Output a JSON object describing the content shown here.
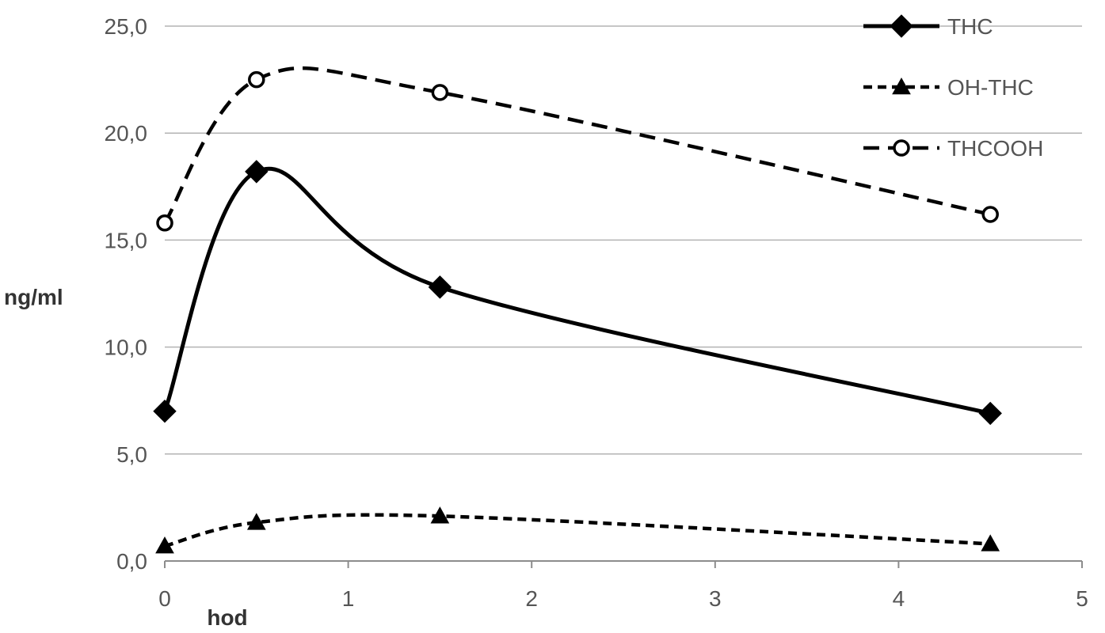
{
  "chart_data": {
    "type": "line",
    "title": "",
    "xlabel": "hod",
    "ylabel": "ng/ml",
    "xlim": [
      0,
      5
    ],
    "ylim": [
      0,
      25
    ],
    "x_ticks": [
      0,
      1,
      2,
      3,
      4,
      5
    ],
    "x_tick_labels": [
      "0",
      "1",
      "2",
      "3",
      "4",
      "5"
    ],
    "y_ticks": [
      0,
      5,
      10,
      15,
      20,
      25
    ],
    "y_tick_labels": [
      "0,0",
      "5,0",
      "10,0",
      "15,0",
      "20,0",
      "25,0"
    ],
    "grid": "horizontal",
    "legend_position": "top-right",
    "smooth": true,
    "series": [
      {
        "name": "THC",
        "x": [
          0,
          0.5,
          1.5,
          4.5
        ],
        "values": [
          7.0,
          18.2,
          12.8,
          6.9
        ],
        "line_style": "solid",
        "marker": "diamond",
        "color": "#000000"
      },
      {
        "name": "OH-THC",
        "x": [
          0,
          0.5,
          1.5,
          4.5
        ],
        "values": [
          0.7,
          1.8,
          2.1,
          0.8
        ],
        "line_style": "dashed-short",
        "marker": "triangle",
        "color": "#000000"
      },
      {
        "name": "THCOOH",
        "x": [
          0,
          0.5,
          1.5,
          4.5
        ],
        "values": [
          15.8,
          22.5,
          21.9,
          16.2
        ],
        "line_style": "dashed-long",
        "marker": "open-circle",
        "color": "#000000"
      }
    ]
  }
}
